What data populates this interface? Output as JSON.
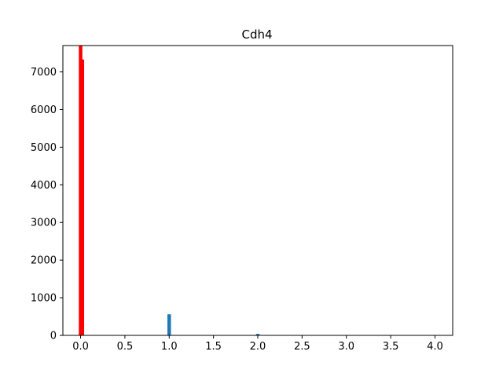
{
  "chart_data": {
    "type": "bar",
    "title": "Cdh4",
    "xlabel": "",
    "ylabel": "",
    "xlim": [
      -0.2,
      4.2
    ],
    "ylim": [
      0,
      7700
    ],
    "xticks": [
      0.0,
      0.5,
      1.0,
      1.5,
      2.0,
      2.5,
      3.0,
      3.5,
      4.0
    ],
    "xtick_labels": [
      "0.0",
      "0.5",
      "1.0",
      "1.5",
      "2.0",
      "2.5",
      "3.0",
      "3.5",
      "4.0"
    ],
    "yticks": [
      0,
      1000,
      2000,
      3000,
      4000,
      5000,
      6000,
      7000
    ],
    "ytick_labels": [
      "0",
      "1000",
      "2000",
      "3000",
      "4000",
      "5000",
      "6000",
      "7000"
    ],
    "grid": false,
    "bin_width": 0.04,
    "series": [
      {
        "color": "#1f77b4",
        "bars": [
          {
            "x": 1.0,
            "value": 560
          },
          {
            "x": 2.0,
            "value": 40
          }
        ]
      },
      {
        "color": "#ff0000",
        "bars": [
          {
            "x": 0.0,
            "value": 7700
          },
          {
            "x": 0.02,
            "value": 7330
          }
        ]
      }
    ]
  }
}
